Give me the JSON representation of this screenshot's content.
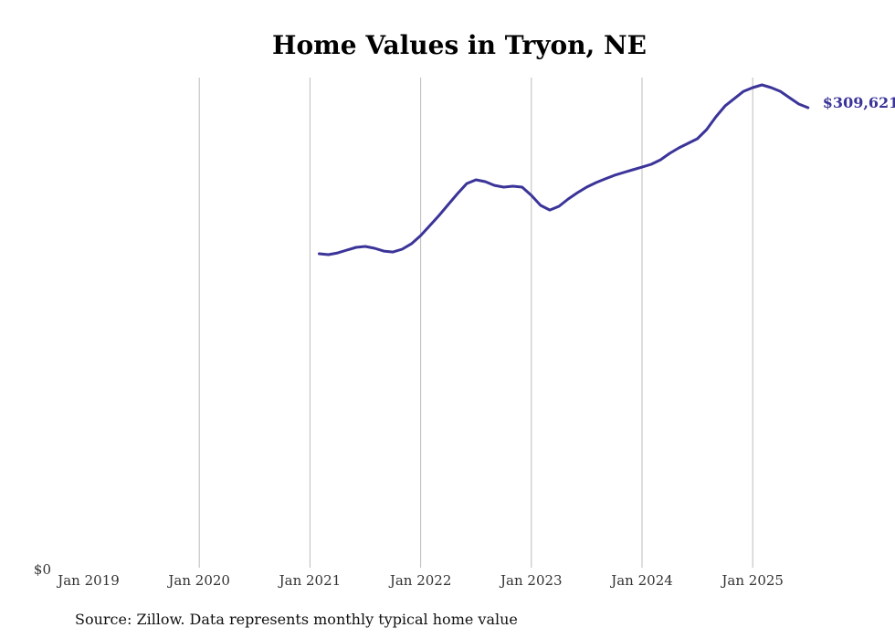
{
  "chart_data": {
    "type": "line",
    "title": "Home Values in Tryon, NE",
    "xlabel": "",
    "ylabel": "",
    "source": "Source: Zillow. Data represents monthly typical home value",
    "x_ticks": [
      "Jan 2019",
      "Jan 2020",
      "Jan 2021",
      "Jan 2022",
      "Jan 2023",
      "Jan 2024",
      "Jan 2025"
    ],
    "y_tick_label": "$0",
    "ylim": [
      0,
      329800
    ],
    "grid": "vertical",
    "line_color": "#3b3499",
    "end_label": "$309,621",
    "start_month": "2021-02",
    "series": [
      {
        "name": "Typical home value",
        "values": [
          211900,
          211300,
          212500,
          214400,
          216200,
          216800,
          215600,
          213700,
          213100,
          215000,
          218600,
          224100,
          230800,
          237600,
          244900,
          252200,
          258900,
          261400,
          260200,
          257700,
          256500,
          257100,
          256500,
          251000,
          244300,
          241200,
          243700,
          248600,
          252800,
          256500,
          259500,
          262000,
          264400,
          266300,
          268100,
          269900,
          271800,
          274800,
          279100,
          282800,
          285800,
          288900,
          295000,
          303500,
          310800,
          315700,
          320600,
          323100,
          324900,
          323100,
          320600,
          316300,
          312100,
          309621
        ]
      }
    ]
  }
}
